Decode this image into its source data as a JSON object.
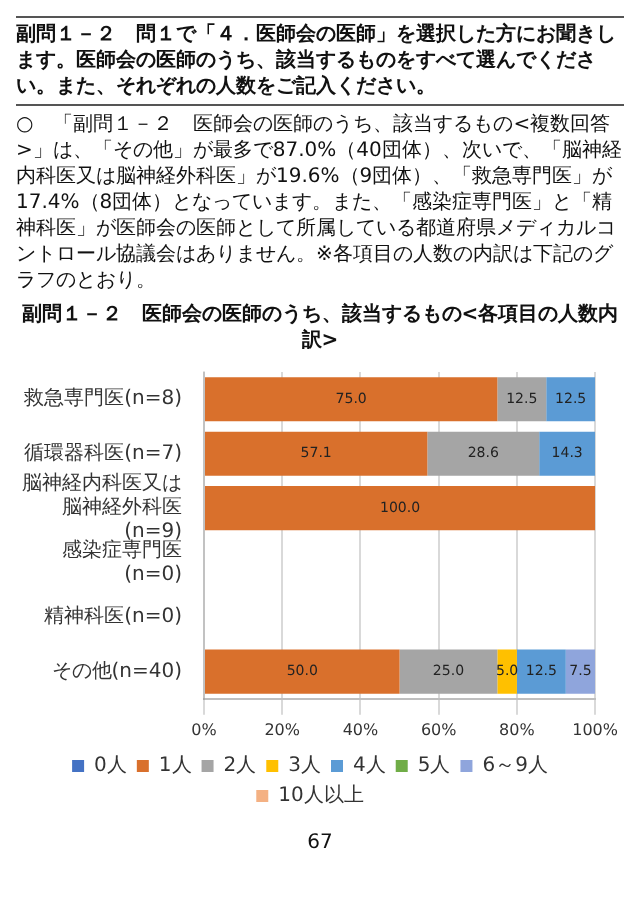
{
  "chart_data": {
    "type": "bar",
    "orientation": "horizontal",
    "stacked": true,
    "title": "副問１－２　医師会の医師のうち、該当するもの<各項目の人数内訳>",
    "annotations": [
      "副問１－２　問１で「４．医師会の医師」を選択した方にお聞きします。医師会の医師のうち、該当するものをすべて選んでください。また、それぞれの人数をご記入ください。",
      "○　「副問１－２　医師会の医師のうち、該当するもの<複数回答>」は、「その他」が最多で87.0%（40団体）、次いで、「脳神経内科医又は脳神経外科医」が19.6%（9団体）、「救急専門医」が17.4%（8団体）となっています。また、「感染症専門医」と「精神科医」が医師会の医師として所属している都道府県メディカルコントロール協議会はありません。※各項目の人数の内訳は下記のグラフのとおり。",
      "67"
    ],
    "categories": [
      "救急専門医(n=8)",
      "循環器科医(n=7)",
      "脳神経内科医又は脳神経外科医(n=9)",
      "感染症専門医(n=0)",
      "精神科医(n=0)",
      "その他(n=40)"
    ],
    "series": [
      {
        "name": "0人",
        "color": "#4472c4",
        "values": [
          null,
          null,
          null,
          null,
          null,
          null
        ]
      },
      {
        "name": "1人",
        "color": "#d9702c",
        "values": [
          75,
          57.1,
          100,
          null,
          null,
          50
        ],
        "value_labels": [
          "75.0",
          "57.1",
          "100.0",
          null,
          null,
          "50.0"
        ]
      },
      {
        "name": "2人",
        "color": "#a5a5a5",
        "values": [
          12.5,
          28.6,
          null,
          null,
          null,
          25
        ],
        "value_labels": [
          "12.5",
          "28.6",
          null,
          null,
          null,
          "25.0"
        ]
      },
      {
        "name": "3人",
        "color": "#ffc000",
        "values": [
          null,
          null,
          null,
          null,
          null,
          5
        ],
        "value_labels": [
          null,
          null,
          null,
          null,
          null,
          "5.0"
        ]
      },
      {
        "name": "4人",
        "color": "#5b9bd5",
        "values": [
          12.5,
          14.3,
          null,
          null,
          null,
          12.5
        ],
        "value_labels": [
          "12.5",
          "14.3",
          null,
          null,
          null,
          "12.5"
        ]
      },
      {
        "name": "5人",
        "color": "#70ad47",
        "values": [
          null,
          null,
          null,
          null,
          null,
          null
        ]
      },
      {
        "name": "6～9人",
        "color": "#8fa5dc",
        "values": [
          null,
          null,
          null,
          null,
          null,
          7.5
        ],
        "value_labels": [
          null,
          null,
          null,
          null,
          null,
          "7.5"
        ]
      },
      {
        "name": "10人以上",
        "color": "#f4b183",
        "values": [
          null,
          null,
          null,
          null,
          null,
          null
        ]
      }
    ],
    "xlim": [
      0,
      100
    ],
    "xticks": [
      {
        "value": 0,
        "label": "0%"
      },
      {
        "value": 20,
        "label": "20%"
      },
      {
        "value": 40,
        "label": "40%"
      },
      {
        "value": 60,
        "label": "60%"
      },
      {
        "value": 80,
        "label": "80%"
      },
      {
        "value": 100,
        "label": "100%"
      }
    ],
    "grid": "x",
    "legend": "bottom"
  }
}
